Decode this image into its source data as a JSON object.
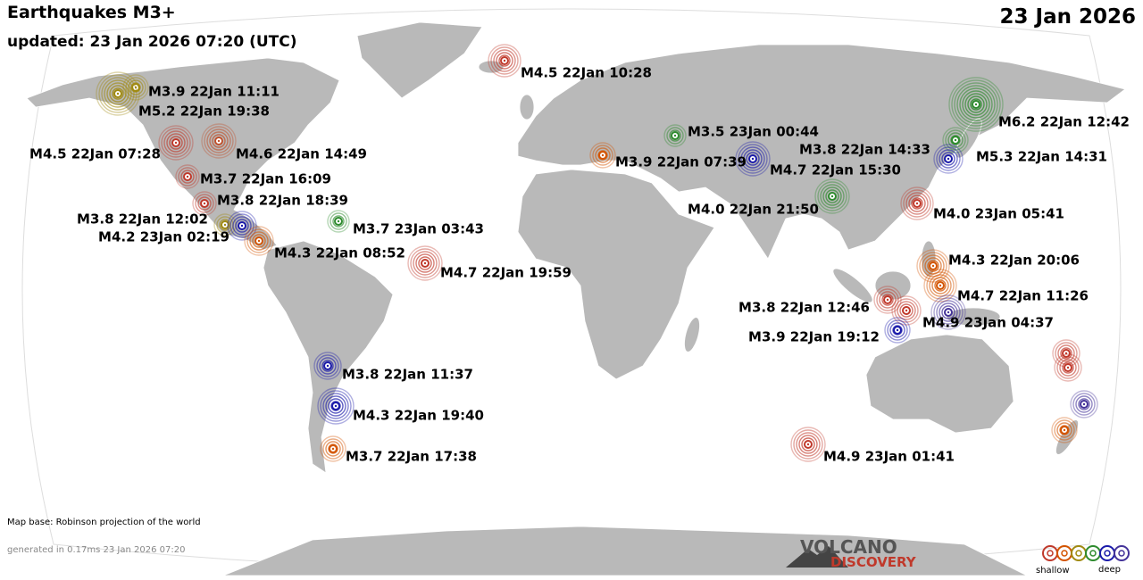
{
  "header": {
    "title": "Earthquakes M3+",
    "updated": "updated: 23 Jan 2026 07:20 (UTC)",
    "date": "23 Jan 2026"
  },
  "quakes": [
    {
      "label": "M4.5 22Jan 10:28",
      "color": "#c0392b"
    },
    {
      "label": "M3.9 22Jan 11:11",
      "color": "#a08a10"
    },
    {
      "label": "M5.2 22Jan 19:38",
      "color": "#a08a10"
    },
    {
      "label": "M4.5 22Jan 07:28",
      "color": "#c0392b"
    },
    {
      "label": "M4.6 22Jan 14:49",
      "color": "#c0502b"
    },
    {
      "label": "M3.7 22Jan 16:09",
      "color": "#c0392b"
    },
    {
      "label": "M3.8 22Jan 18:39",
      "color": "#c0392b"
    },
    {
      "label": "M3.8 22Jan 12:02",
      "color": "#a08a10"
    },
    {
      "label": "M4.2 23Jan 02:19",
      "color": "#1a1aaa"
    },
    {
      "label": "M4.3 22Jan 08:52",
      "color": "#d35400"
    },
    {
      "label": "M3.7 23Jan 03:43",
      "color": "#2e8b2e"
    },
    {
      "label": "M4.7 22Jan 19:59",
      "color": "#c0392b"
    },
    {
      "label": "M3.5 23Jan 00:44",
      "color": "#2e8b2e"
    },
    {
      "label": "M3.9 22Jan 07:39",
      "color": "#d35400"
    },
    {
      "label": "M4.7 22Jan 15:30",
      "color": "#1a1aaa"
    },
    {
      "label": "M3.8 22Jan 14:33",
      "color": "#2e8b2e"
    },
    {
      "label": "M6.2 22Jan 12:42",
      "color": "#2e8b2e"
    },
    {
      "label": "M5.3 22Jan 14:31",
      "color": "#1a1aaa"
    },
    {
      "label": "M4.0 22Jan 21:50",
      "color": "#2e8b2e"
    },
    {
      "label": "M4.0 23Jan 05:41",
      "color": "#c0392b"
    },
    {
      "label": "M4.3 22Jan 20:06",
      "color": "#d35400"
    },
    {
      "label": "M4.7 22Jan 11:26",
      "color": "#d35400"
    },
    {
      "label": "M3.8 22Jan 12:46",
      "color": "#c0392b"
    },
    {
      "label": "M4.9 23Jan 04:37",
      "color": "#443399"
    },
    {
      "label": "M3.9 22Jan 19:12",
      "color": "#1a1aaa"
    },
    {
      "label": "M3.8 22Jan 11:37",
      "color": "#1a1aaa"
    },
    {
      "label": "M4.3 22Jan 19:40",
      "color": "#1a1aaa"
    },
    {
      "label": "M3.7 22Jan 17:38",
      "color": "#d35400"
    },
    {
      "label": "M4.9 23Jan 01:41",
      "color": "#c0392b"
    }
  ],
  "footer": {
    "map_base": "Map base: Robinson projection of the world",
    "generated": "generated in 0.17ms 23 Jan 2026 07:20"
  },
  "logo": {
    "line1": "VOLCANO",
    "line2": "DISCOVERY"
  },
  "legend": {
    "shallow": "shallow",
    "deep": "deep",
    "colors": [
      "#c0392b",
      "#d35400",
      "#a08a10",
      "#2e8b2e",
      "#1a1aaa",
      "#443399"
    ]
  }
}
